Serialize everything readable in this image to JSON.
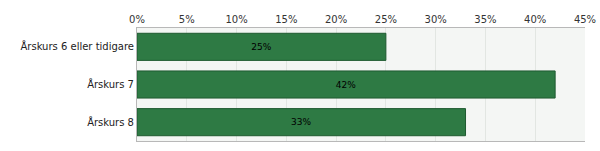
{
  "chart_data": {
    "type": "bar",
    "orientation": "horizontal",
    "categories": [
      "Årskurs 6 eller tidigare",
      "Årskurs 7",
      "Årskurs 8"
    ],
    "values": [
      25,
      42,
      33
    ],
    "value_labels": [
      "25%",
      "42%",
      "33%"
    ],
    "data_labels": true,
    "color": "#2e7a44",
    "xlim": [
      0,
      45
    ],
    "xticks": [
      {
        "value": 0,
        "label": "0%"
      },
      {
        "value": 5,
        "label": "5%"
      },
      {
        "value": 10,
        "label": "10%"
      },
      {
        "value": 15,
        "label": "15%"
      },
      {
        "value": 20,
        "label": "20%"
      },
      {
        "value": 25,
        "label": "25%"
      },
      {
        "value": 30,
        "label": "30%"
      },
      {
        "value": 35,
        "label": "35%"
      },
      {
        "value": 40,
        "label": "40%"
      },
      {
        "value": 45,
        "label": "45%"
      }
    ],
    "grid": true
  }
}
